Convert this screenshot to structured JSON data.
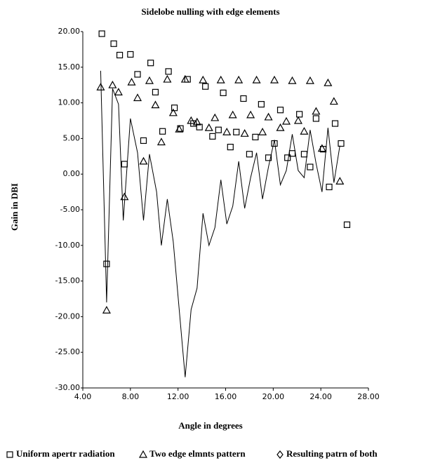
{
  "chart_data": {
    "type": "scatter",
    "title": "Sidelobe nulling with edge elements",
    "x_label": "Angle in degrees",
    "y_label": "Gain in DBI",
    "xlim": [
      4,
      28
    ],
    "ylim": [
      -30,
      20
    ],
    "xticks": [
      {
        "value": 4,
        "label": "4.00"
      },
      {
        "value": 8,
        "label": "8.00"
      },
      {
        "value": 12,
        "label": "12.00"
      },
      {
        "value": 16,
        "label": "16.00"
      },
      {
        "value": 20,
        "label": "20.00"
      },
      {
        "value": 24,
        "label": "24.00"
      },
      {
        "value": 28,
        "label": "28.00"
      }
    ],
    "yticks": [
      {
        "value": 20,
        "label": "20.00"
      },
      {
        "value": 15,
        "label": "15.00"
      },
      {
        "value": 10,
        "label": "10.00"
      },
      {
        "value": 5,
        "label": "5.00"
      },
      {
        "value": 0,
        "label": "0.00"
      },
      {
        "value": -5,
        "label": "-5.00"
      },
      {
        "value": -10,
        "label": "-10.00"
      },
      {
        "value": -15,
        "label": "-15.00"
      },
      {
        "value": -20,
        "label": "-20.00"
      },
      {
        "value": -25,
        "label": "-25.00"
      },
      {
        "value": -30,
        "label": "-30.00"
      }
    ],
    "grid": false,
    "series": [
      {
        "name": "Uniform apertr radiation",
        "color": "#000000",
        "marker": "square",
        "x": [
          5.6,
          6.0,
          6.6,
          7.1,
          7.5,
          8.0,
          8.6,
          9.1,
          9.7,
          10.1,
          10.7,
          11.2,
          11.7,
          12.2,
          12.8,
          13.3,
          13.8,
          14.3,
          14.9,
          15.4,
          15.8,
          16.4,
          16.9,
          17.5,
          18.0,
          18.5,
          19.0,
          19.6,
          20.1,
          20.6,
          21.2,
          21.6,
          22.2,
          22.6,
          23.1,
          23.6,
          24.2,
          24.7,
          25.2,
          25.7,
          26.2
        ],
        "values": [
          19.7,
          -12.6,
          18.3,
          16.7,
          1.4,
          16.8,
          14.0,
          4.7,
          15.6,
          11.5,
          6.0,
          14.4,
          9.3,
          6.4,
          13.3,
          7.1,
          6.6,
          12.3,
          5.3,
          6.2,
          11.4,
          3.8,
          5.9,
          10.6,
          2.8,
          5.2,
          9.8,
          2.3,
          4.3,
          9.0,
          2.3,
          2.9,
          8.4,
          2.8,
          1.0,
          7.8,
          3.5,
          -1.8,
          7.1,
          4.3,
          -7.1
        ]
      },
      {
        "name": "Two edge elmnts pattern",
        "color": "#000000",
        "marker": "triangle",
        "x": [
          5.5,
          6.0,
          6.5,
          7.0,
          7.5,
          8.1,
          8.6,
          9.1,
          9.6,
          10.1,
          10.6,
          11.1,
          11.6,
          12.1,
          12.6,
          13.1,
          13.6,
          14.1,
          14.6,
          15.1,
          15.6,
          16.1,
          16.6,
          17.1,
          17.6,
          18.1,
          18.6,
          19.1,
          19.6,
          20.1,
          20.6,
          21.1,
          21.6,
          22.1,
          22.6,
          23.1,
          23.6,
          24.1,
          24.6,
          25.1,
          25.6
        ],
        "values": [
          12.2,
          -19.1,
          12.5,
          11.5,
          -3.2,
          12.9,
          10.7,
          1.8,
          13.1,
          9.7,
          4.5,
          13.3,
          8.6,
          6.3,
          13.3,
          7.5,
          7.3,
          13.2,
          6.5,
          7.9,
          13.2,
          5.9,
          8.3,
          13.2,
          5.7,
          8.3,
          13.2,
          5.9,
          8.0,
          13.2,
          6.5,
          7.4,
          13.1,
          7.5,
          6.0,
          13.1,
          8.8,
          3.6,
          12.8,
          10.2,
          -1.0
        ]
      },
      {
        "name": "Resulting patrn of both",
        "color": "#000000",
        "marker": "diamond",
        "style": "line",
        "x": [
          5.5,
          6.0,
          6.5,
          7.0,
          7.4,
          8.0,
          8.6,
          9.1,
          9.6,
          10.2,
          10.6,
          11.1,
          11.6,
          12.1,
          12.6,
          13.1,
          13.6,
          14.1,
          14.6,
          15.1,
          15.6,
          16.1,
          16.6,
          17.1,
          17.6,
          18.1,
          18.6,
          19.1,
          19.6,
          20.1,
          20.6,
          21.1,
          21.6,
          22.1,
          22.6,
          23.1,
          23.6,
          24.1,
          24.6,
          25.1,
          25.6
        ],
        "values": [
          14.5,
          -18.0,
          12.0,
          9.8,
          -6.5,
          7.8,
          3.0,
          -6.5,
          2.8,
          -2.5,
          -10.0,
          -3.5,
          -9.5,
          -19.0,
          -28.5,
          -19.0,
          -16.0,
          -5.5,
          -10.0,
          -7.5,
          -0.8,
          -7.0,
          -4.5,
          1.8,
          -4.8,
          -0.5,
          3.0,
          -3.5,
          1.0,
          4.8,
          -1.5,
          0.5,
          5.6,
          0.5,
          -0.5,
          6.2,
          1.5,
          -2.5,
          6.5,
          -1.2,
          4.0
        ]
      }
    ]
  }
}
